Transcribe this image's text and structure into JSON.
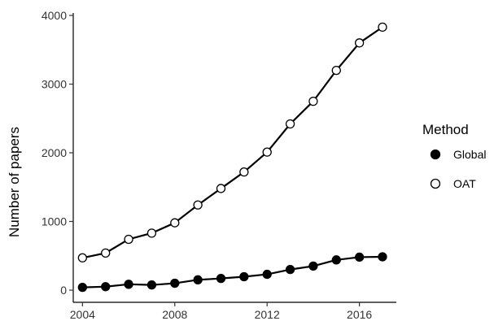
{
  "chart_data": {
    "type": "line",
    "title": "",
    "xlabel": "",
    "ylabel": "Number of papers",
    "x": [
      2004,
      2005,
      2006,
      2007,
      2008,
      2009,
      2010,
      2011,
      2012,
      2013,
      2014,
      2015,
      2016,
      2017
    ],
    "xlim": [
      2003.6,
      2017.6
    ],
    "ylim": [
      0,
      4000
    ],
    "x_ticks": [
      2004,
      2008,
      2012,
      2016
    ],
    "y_ticks": [
      0,
      1000,
      2000,
      3000,
      4000
    ],
    "grid": false,
    "legend": {
      "title": "Method",
      "position": "right"
    },
    "series": [
      {
        "name": "Global",
        "marker": "filled-circle",
        "values": [
          40,
          50,
          85,
          75,
          100,
          150,
          170,
          195,
          230,
          300,
          350,
          440,
          480,
          485
        ]
      },
      {
        "name": "OAT",
        "marker": "open-circle",
        "values": [
          470,
          540,
          740,
          830,
          980,
          1240,
          1480,
          1720,
          2010,
          2420,
          2750,
          3200,
          3600,
          3830
        ]
      }
    ]
  }
}
